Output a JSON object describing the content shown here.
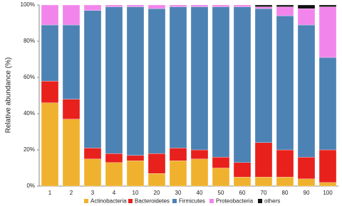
{
  "chart_data": {
    "type": "stacked-bar",
    "y_label": "Relative abundance (%)",
    "categories": [
      "1",
      "2",
      "3",
      "4",
      "10",
      "20",
      "30",
      "40",
      "50",
      "60",
      "70",
      "80",
      "90",
      "100"
    ],
    "series": [
      {
        "name": "Actinobacteria",
        "color": "#f0b22e",
        "values": [
          46,
          37,
          15,
          13,
          14,
          7,
          14,
          15,
          10,
          5,
          5,
          5,
          4,
          2
        ]
      },
      {
        "name": "Bacteroidetes",
        "color": "#e8211d",
        "values": [
          12,
          11,
          6,
          5,
          3,
          11,
          7,
          5,
          6,
          8,
          19,
          15,
          12,
          18
        ]
      },
      {
        "name": "Firmicutes",
        "color": "#4d82b4",
        "values": [
          31,
          41,
          76,
          81,
          82,
          80,
          78,
          79,
          83,
          86,
          74,
          74,
          73,
          51
        ]
      },
      {
        "name": "Proteobacteria",
        "color": "#f285ec",
        "values": [
          11,
          11,
          3,
          1,
          1,
          2,
          1,
          1,
          1,
          1,
          1,
          5,
          9,
          28
        ]
      },
      {
        "name": "others",
        "color": "#111111",
        "values": [
          0,
          0,
          0,
          0,
          0,
          0,
          0,
          0,
          0,
          0,
          1,
          1,
          2,
          1
        ]
      }
    ],
    "ylim": [
      0,
      100
    ],
    "yticks": [
      {
        "value": 0,
        "label": "0%"
      },
      {
        "value": 20,
        "label": "20%"
      },
      {
        "value": 40,
        "label": "40%"
      },
      {
        "value": 60,
        "label": "60%"
      },
      {
        "value": 80,
        "label": "80%"
      },
      {
        "value": 100,
        "label": "100%"
      }
    ]
  }
}
